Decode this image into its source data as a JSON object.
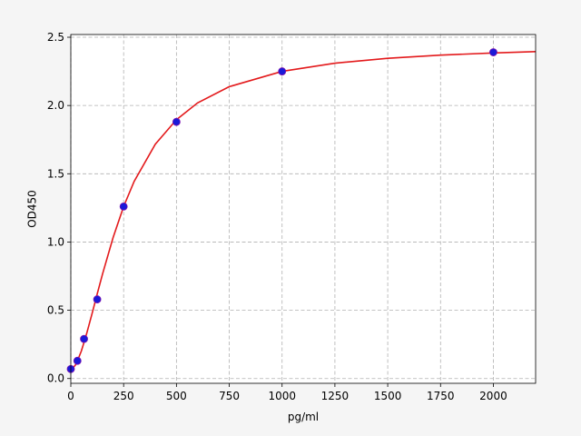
{
  "chart_data": {
    "type": "scatter",
    "x_label": "pg/ml",
    "y_label": "OD450",
    "xlim": [
      0,
      2200
    ],
    "ylim": [
      -0.035,
      2.52
    ],
    "xticks": [
      0,
      250,
      500,
      750,
      1000,
      1250,
      1500,
      1750,
      2000
    ],
    "yticks": [
      {
        "value": 0,
        "label": "0.0"
      },
      0.5,
      {
        "value": 1,
        "label": "1.0"
      },
      1.5,
      {
        "value": 2,
        "label": "2.0"
      },
      2.5
    ],
    "grid": true,
    "series": [
      {
        "mode": "markers",
        "color": "#1a1ad8",
        "x": [
          0,
          31.25,
          62.5,
          125,
          250,
          500,
          1000,
          2000
        ],
        "values": [
          0.07,
          0.13,
          0.29,
          0.58,
          1.26,
          1.88,
          2.25,
          2.39
        ]
      },
      {
        "mode": "line",
        "color": "#e31a1c",
        "x": [
          0,
          25,
          50,
          75,
          100,
          125,
          150,
          200,
          250,
          300,
          400,
          500,
          600,
          750,
          1000,
          1250,
          1500,
          1750,
          2000,
          2200
        ],
        "values": [
          0.06,
          0.105,
          0.202,
          0.329,
          0.472,
          0.62,
          0.765,
          1.032,
          1.26,
          1.445,
          1.717,
          1.896,
          2.019,
          2.138,
          2.25,
          2.31,
          2.346,
          2.369,
          2.385,
          2.395
        ]
      }
    ]
  }
}
